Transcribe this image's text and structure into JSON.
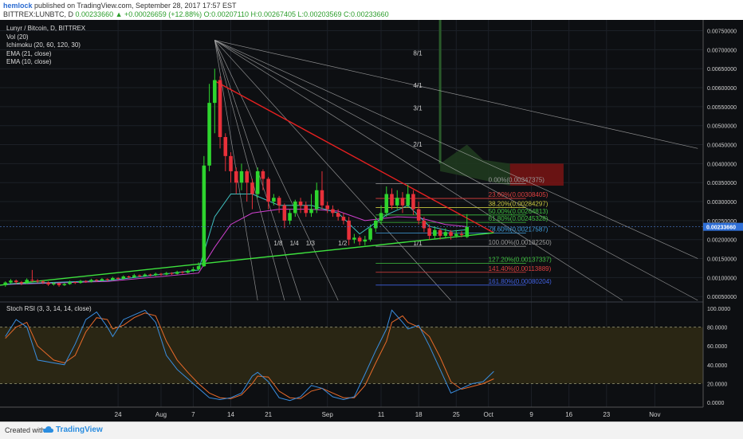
{
  "header": {
    "author": "hemlock",
    "published": "published on TradingView.com, September 28, 2017 17:57 EST",
    "symbol": "BITTREX:LUNBTC, D",
    "quote": "0.00233660 ▲ +0.00026659 (+12.88%) O:0.00207110 H:0.00267405 L:0.00203569 C:0.00233660"
  },
  "legend": [
    "Lunyr / Bitcoin, D, BITTREX",
    "Vol (20)",
    "Ichimoku (20, 60, 120, 30)",
    "EMA (21, close)",
    "EMA (10, close)"
  ],
  "stoch_label": "Stoch RSI (3, 3, 14, 14, close)",
  "footer": {
    "created": "Created with",
    "brand": "TradingView"
  },
  "colors": {
    "background": "#0d0f12",
    "bull": "#2ed52e",
    "bear": "#e8303a",
    "trend_red": "#e82020",
    "trend_green": "#3ee23e",
    "ema21": "#d040d0",
    "ema10": "#40c0c0",
    "stoch_k": "#3a8ee0",
    "stoch_d": "#e86a2a"
  },
  "chart_data": {
    "type": "candlestick",
    "title": "Lunyr / Bitcoin, D, BITTREX",
    "price_axis": {
      "ticks": [
        "0.00750000",
        "0.00700000",
        "0.00650000",
        "0.00600000",
        "0.00550000",
        "0.00500000",
        "0.00450000",
        "0.00400000",
        "0.00350000",
        "0.00300000",
        "0.00250000",
        "0.00200000",
        "0.00150000",
        "0.00100000",
        "0.00050000"
      ],
      "range": [
        0.0004,
        0.0077
      ],
      "current": "0.00233660"
    },
    "stoch_axis": {
      "ticks": [
        "100.0000",
        "80.0000",
        "60.0000",
        "40.0000",
        "20.0000",
        "0.0000"
      ],
      "range": [
        -5,
        105
      ]
    },
    "x_ticks": [
      "24",
      "Aug",
      "7",
      "14",
      "21",
      "Sep",
      "11",
      "18",
      "25",
      "Oct",
      "9",
      "16",
      "23",
      "Nov"
    ],
    "x_tick_days": [
      -8,
      0,
      6,
      13,
      20,
      31,
      41,
      48,
      55,
      61,
      69,
      76,
      83,
      92
    ],
    "x_range": [
      -30,
      101
    ],
    "candles": [
      [
        -29,
        0.0008,
        0.00087,
        0.0009,
        0.00076
      ],
      [
        -28,
        0.00087,
        0.00092,
        0.00096,
        0.00084
      ],
      [
        -27,
        0.00092,
        0.00088,
        0.00095,
        0.00083
      ],
      [
        -26,
        0.00088,
        0.00085,
        0.00091,
        0.0008
      ],
      [
        -25,
        0.00085,
        0.00094,
        0.00098,
        0.00083
      ],
      [
        -24,
        0.00094,
        0.00092,
        0.0012,
        0.00088
      ],
      [
        -23,
        0.00092,
        0.0009,
        0.00096,
        0.00086
      ],
      [
        -22,
        0.0009,
        0.00087,
        0.00093,
        0.00083
      ],
      [
        -21,
        0.00087,
        0.00082,
        0.0009,
        0.00078
      ],
      [
        -20,
        0.00082,
        0.00085,
        0.00088,
        0.00079
      ],
      [
        -19,
        0.00085,
        0.0008,
        0.00087,
        0.00076
      ],
      [
        -18,
        0.0008,
        0.00083,
        0.00086,
        0.00078
      ],
      [
        -17,
        0.00083,
        0.00088,
        0.00092,
        0.00081
      ],
      [
        -16,
        0.00088,
        0.00086,
        0.0009,
        0.00083
      ],
      [
        -15,
        0.00086,
        0.00091,
        0.00094,
        0.00084
      ],
      [
        -14,
        0.00091,
        0.00089,
        0.00093,
        0.00086
      ],
      [
        -13,
        0.00089,
        0.00094,
        0.00097,
        0.00087
      ],
      [
        -12,
        0.00094,
        0.00092,
        0.00096,
        0.00089
      ],
      [
        -11,
        0.00092,
        0.00096,
        0.00099,
        0.0009
      ],
      [
        -10,
        0.00096,
        0.00094,
        0.00098,
        0.00091
      ],
      [
        -9,
        0.00094,
        0.00099,
        0.00102,
        0.00092
      ],
      [
        -8,
        0.00099,
        0.00097,
        0.00101,
        0.00094
      ],
      [
        -7,
        0.00097,
        0.00103,
        0.00106,
        0.00095
      ],
      [
        -6,
        0.00103,
        0.00101,
        0.00105,
        0.00098
      ],
      [
        -5,
        0.00101,
        0.00106,
        0.0011,
        0.00099
      ],
      [
        -4,
        0.00106,
        0.00104,
        0.00108,
        0.00101
      ],
      [
        -3,
        0.00104,
        0.00108,
        0.00111,
        0.00102
      ],
      [
        -2,
        0.00108,
        0.00106,
        0.0011,
        0.00103
      ],
      [
        -1,
        0.00106,
        0.0011,
        0.00113,
        0.00104
      ],
      [
        0,
        0.0011,
        0.00108,
        0.00112,
        0.00105
      ],
      [
        1,
        0.00108,
        0.00112,
        0.00115,
        0.00106
      ],
      [
        2,
        0.00112,
        0.0011,
        0.00114,
        0.00107
      ],
      [
        3,
        0.0011,
        0.00115,
        0.00118,
        0.00108
      ],
      [
        4,
        0.00115,
        0.00113,
        0.00117,
        0.0011
      ],
      [
        5,
        0.00113,
        0.00118,
        0.00122,
        0.00111
      ],
      [
        6,
        0.00118,
        0.00122,
        0.00128,
        0.00115
      ],
      [
        7,
        0.00122,
        0.0013,
        0.0014,
        0.00118
      ],
      [
        8,
        0.0013,
        0.00395,
        0.0042,
        0.00128
      ],
      [
        9,
        0.00395,
        0.0056,
        0.0061,
        0.0038
      ],
      [
        10,
        0.0056,
        0.0062,
        0.0065,
        0.0048
      ],
      [
        11,
        0.0062,
        0.0047,
        0.0063,
        0.0044
      ],
      [
        12,
        0.0047,
        0.0042,
        0.0048,
        0.0038
      ],
      [
        13,
        0.0042,
        0.0038,
        0.0043,
        0.0035
      ],
      [
        14,
        0.0038,
        0.0035,
        0.0039,
        0.0032
      ],
      [
        15,
        0.0035,
        0.0038,
        0.004,
        0.0033
      ],
      [
        16,
        0.0038,
        0.0035,
        0.00385,
        0.003
      ],
      [
        17,
        0.0035,
        0.0032,
        0.0036,
        0.0028
      ],
      [
        18,
        0.0032,
        0.0038,
        0.0039,
        0.0031
      ],
      [
        19,
        0.0038,
        0.0036,
        0.00385,
        0.0033
      ],
      [
        20,
        0.0036,
        0.003,
        0.00365,
        0.0028
      ],
      [
        21,
        0.003,
        0.0031,
        0.0032,
        0.0029
      ],
      [
        22,
        0.0031,
        0.0029,
        0.00315,
        0.0027
      ],
      [
        23,
        0.0029,
        0.0025,
        0.00295,
        0.0023
      ],
      [
        24,
        0.0025,
        0.0027,
        0.0028,
        0.0024
      ],
      [
        25,
        0.0027,
        0.003,
        0.00305,
        0.0026
      ],
      [
        26,
        0.003,
        0.0029,
        0.0031,
        0.0027
      ],
      [
        27,
        0.0029,
        0.0027,
        0.003,
        0.0026
      ],
      [
        28,
        0.0027,
        0.0028,
        0.0032,
        0.0026
      ],
      [
        29,
        0.0028,
        0.0033,
        0.0035,
        0.0027
      ],
      [
        30,
        0.0033,
        0.0029,
        0.0038,
        0.0028
      ],
      [
        31,
        0.0029,
        0.0028,
        0.003,
        0.0027
      ],
      [
        32,
        0.0028,
        0.0027,
        0.0029,
        0.0026
      ],
      [
        33,
        0.0027,
        0.0026,
        0.0028,
        0.0025
      ],
      [
        34,
        0.0026,
        0.0025,
        0.0027,
        0.0024
      ],
      [
        35,
        0.0025,
        0.002,
        0.0026,
        0.00185
      ],
      [
        36,
        0.002,
        0.00205,
        0.00215,
        0.0019
      ],
      [
        37,
        0.00205,
        0.00195,
        0.0021,
        0.00185
      ],
      [
        38,
        0.00195,
        0.002,
        0.0021,
        0.00185
      ],
      [
        39,
        0.002,
        0.0023,
        0.0024,
        0.00195
      ],
      [
        40,
        0.0023,
        0.0025,
        0.0026,
        0.0022
      ],
      [
        41,
        0.0025,
        0.0027,
        0.0029,
        0.0024
      ],
      [
        42,
        0.0027,
        0.0032,
        0.0034,
        0.0026
      ],
      [
        43,
        0.0032,
        0.0029,
        0.00335,
        0.0028
      ],
      [
        44,
        0.0029,
        0.0031,
        0.0033,
        0.0028
      ],
      [
        45,
        0.0031,
        0.0029,
        0.00325,
        0.0027
      ],
      [
        46,
        0.0029,
        0.0032,
        0.00345,
        0.00285
      ],
      [
        47,
        0.0032,
        0.0028,
        0.0033,
        0.00265
      ],
      [
        48,
        0.0028,
        0.0025,
        0.003,
        0.0024
      ],
      [
        49,
        0.0025,
        0.0023,
        0.0026,
        0.0022
      ],
      [
        50,
        0.0023,
        0.0021,
        0.0024,
        0.002
      ],
      [
        51,
        0.0021,
        0.00225,
        0.00235,
        0.002
      ],
      [
        52,
        0.00225,
        0.0021,
        0.0023,
        0.002
      ],
      [
        53,
        0.0021,
        0.0022,
        0.0023,
        0.00205
      ],
      [
        54,
        0.0022,
        0.0021,
        0.00225,
        0.002
      ],
      [
        55,
        0.0021,
        0.00215,
        0.00225,
        0.00205
      ],
      [
        56,
        0.00215,
        0.00212,
        0.00222,
        0.00206
      ],
      [
        57,
        0.00207,
        0.00234,
        0.00267,
        0.00204
      ]
    ],
    "ema21": [
      [
        -29,
        0.00082
      ],
      [
        -10,
        0.0009
      ],
      [
        7,
        0.00112
      ],
      [
        10,
        0.0018
      ],
      [
        13,
        0.0024
      ],
      [
        17,
        0.0027
      ],
      [
        22,
        0.0028
      ],
      [
        28,
        0.0028
      ],
      [
        33,
        0.00275
      ],
      [
        38,
        0.0025
      ],
      [
        44,
        0.0026
      ],
      [
        48,
        0.00258
      ],
      [
        53,
        0.0024
      ],
      [
        57,
        0.00234
      ]
    ],
    "ema10": [
      [
        -29,
        0.00083
      ],
      [
        -10,
        0.00092
      ],
      [
        7,
        0.0012
      ],
      [
        10,
        0.0026
      ],
      [
        13,
        0.0032
      ],
      [
        17,
        0.0032
      ],
      [
        22,
        0.0029
      ],
      [
        28,
        0.0029
      ],
      [
        33,
        0.0027
      ],
      [
        37,
        0.00215
      ],
      [
        42,
        0.00265
      ],
      [
        46,
        0.0029
      ],
      [
        50,
        0.00235
      ],
      [
        54,
        0.00222
      ],
      [
        57,
        0.00226
      ]
    ],
    "trendlines": [
      {
        "color": "red",
        "from": [
          10,
          0.00618
        ],
        "to": [
          62,
          0.00218
        ]
      },
      {
        "color": "green",
        "from": [
          -30,
          0.0008
        ],
        "to": [
          62,
          0.00218
        ]
      }
    ],
    "fan_origin": [
      10,
      0.00725
    ],
    "gann_fan": [
      {
        "label": "8/1",
        "end": [
          100,
          0.0044
        ]
      },
      {
        "label": "4/1",
        "end": [
          100,
          0.0015
        ]
      },
      {
        "label": "3/1",
        "end": [
          100,
          0.0004
        ]
      },
      {
        "label": "2/1",
        "end": [
          86,
          0.0004
        ]
      },
      {
        "label": "1/1",
        "end": [
          54,
          0.0004
        ]
      },
      {
        "label": "1/2",
        "end": [
          33,
          0.0004
        ]
      },
      {
        "label": "1/3",
        "end": [
          26,
          0.0004
        ]
      },
      {
        "label": "1/4",
        "end": [
          23,
          0.0004
        ]
      },
      {
        "label": "1/8",
        "end": [
          18,
          0.0004
        ]
      }
    ],
    "fan_labels": [
      {
        "label": "8/1",
        "at": [
          47,
          0.00685
        ]
      },
      {
        "label": "4/1",
        "at": [
          47,
          0.006
        ]
      },
      {
        "label": "3/1",
        "at": [
          47,
          0.0054
        ]
      },
      {
        "label": "2/1",
        "at": [
          47,
          0.00445
        ]
      },
      {
        "label": "1/1",
        "at": [
          47,
          0.00185
        ]
      },
      {
        "label": "1/2",
        "at": [
          33,
          0.00185
        ]
      },
      {
        "label": "1/3",
        "at": [
          27,
          0.00185
        ]
      },
      {
        "label": "1/4",
        "at": [
          24,
          0.00185
        ]
      },
      {
        "label": "1/8",
        "at": [
          21,
          0.00185
        ]
      }
    ],
    "fib_levels": [
      {
        "label": "0.00%(0.00347375)",
        "price": 0.00347375,
        "color": "#9a9a9a"
      },
      {
        "label": "23.60%(0.00308405)",
        "price": 0.00308405,
        "color": "#e04040"
      },
      {
        "label": "38.20%(0.00284297)",
        "price": 0.00284297,
        "color": "#c8c840"
      },
      {
        "label": "50.00%(0.00264813)",
        "price": 0.00264813,
        "color": "#40c040"
      },
      {
        "label": "61.80%(0.00245328)",
        "price": 0.00245328,
        "color": "#40c040"
      },
      {
        "label": "78.60%(0.00217587)",
        "price": 0.00217587,
        "color": "#40a0e0"
      },
      {
        "label": "100.00%(0.00182250)",
        "price": 0.0018225,
        "color": "#9a9a9a"
      },
      {
        "label": "127.20%(0.00137337)",
        "price": 0.00137337,
        "color": "#40c040"
      },
      {
        "label": "141.40%(0.00113889)",
        "price": 0.00113889,
        "color": "#e04040"
      },
      {
        "label": "161.80%(0.00080204)",
        "price": 0.00080204,
        "color": "#4060e0"
      }
    ],
    "fib_x_range": [
      40,
      68
    ],
    "stoch_k": [
      [
        -29,
        70
      ],
      [
        -27,
        88
      ],
      [
        -25,
        80
      ],
      [
        -23,
        45
      ],
      [
        -20,
        42
      ],
      [
        -18,
        40
      ],
      [
        -16,
        62
      ],
      [
        -14,
        88
      ],
      [
        -12,
        96
      ],
      [
        -10,
        80
      ],
      [
        -9,
        70
      ],
      [
        -7,
        88
      ],
      [
        -5,
        93
      ],
      [
        -3,
        98
      ],
      [
        -1,
        85
      ],
      [
        1,
        50
      ],
      [
        3,
        35
      ],
      [
        5,
        25
      ],
      [
        7,
        15
      ],
      [
        9,
        5
      ],
      [
        11,
        3
      ],
      [
        13,
        5
      ],
      [
        15,
        10
      ],
      [
        17,
        28
      ],
      [
        18,
        32
      ],
      [
        20,
        22
      ],
      [
        22,
        5
      ],
      [
        24,
        2
      ],
      [
        26,
        6
      ],
      [
        28,
        18
      ],
      [
        30,
        15
      ],
      [
        32,
        6
      ],
      [
        34,
        3
      ],
      [
        36,
        6
      ],
      [
        38,
        30
      ],
      [
        40,
        55
      ],
      [
        42,
        78
      ],
      [
        43,
        98
      ],
      [
        45,
        85
      ],
      [
        46,
        78
      ],
      [
        48,
        82
      ],
      [
        50,
        60
      ],
      [
        52,
        35
      ],
      [
        54,
        10
      ],
      [
        56,
        15
      ],
      [
        58,
        20
      ],
      [
        60,
        22
      ],
      [
        62,
        33
      ]
    ],
    "stoch_d": [
      [
        -29,
        68
      ],
      [
        -27,
        80
      ],
      [
        -25,
        85
      ],
      [
        -23,
        60
      ],
      [
        -20,
        45
      ],
      [
        -18,
        42
      ],
      [
        -16,
        50
      ],
      [
        -14,
        75
      ],
      [
        -12,
        90
      ],
      [
        -10,
        88
      ],
      [
        -9,
        78
      ],
      [
        -7,
        82
      ],
      [
        -5,
        90
      ],
      [
        -3,
        95
      ],
      [
        -1,
        92
      ],
      [
        1,
        65
      ],
      [
        3,
        45
      ],
      [
        5,
        32
      ],
      [
        7,
        20
      ],
      [
        9,
        10
      ],
      [
        11,
        5
      ],
      [
        13,
        4
      ],
      [
        15,
        8
      ],
      [
        17,
        20
      ],
      [
        18,
        28
      ],
      [
        20,
        27
      ],
      [
        22,
        12
      ],
      [
        24,
        5
      ],
      [
        26,
        4
      ],
      [
        28,
        12
      ],
      [
        30,
        15
      ],
      [
        32,
        10
      ],
      [
        34,
        5
      ],
      [
        36,
        5
      ],
      [
        38,
        18
      ],
      [
        40,
        42
      ],
      [
        42,
        65
      ],
      [
        43,
        85
      ],
      [
        45,
        92
      ],
      [
        46,
        85
      ],
      [
        48,
        80
      ],
      [
        50,
        70
      ],
      [
        52,
        48
      ],
      [
        54,
        22
      ],
      [
        56,
        14
      ],
      [
        58,
        17
      ],
      [
        60,
        20
      ],
      [
        62,
        25
      ]
    ]
  }
}
